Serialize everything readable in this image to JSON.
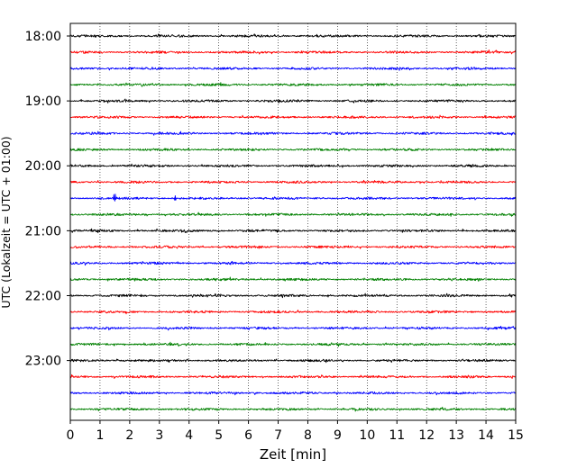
{
  "chart_data": {
    "type": "line",
    "title": "",
    "xlabel": "Zeit  [min]",
    "ylabel": "UTC (Lokalzeit = UTC + 01:00)",
    "xlim": [
      0,
      15
    ],
    "x_ticks": [
      0,
      1,
      2,
      3,
      4,
      5,
      6,
      7,
      8,
      9,
      10,
      11,
      12,
      13,
      14,
      15
    ],
    "y_tick_labels": [
      "18:00",
      "19:00",
      "20:00",
      "21:00",
      "22:00",
      "23:00"
    ],
    "row_start_time": "18:00",
    "row_interval_minutes": 15,
    "row_count": 24,
    "series_colors": [
      "#000000",
      "#ff0000",
      "#0000ff",
      "#008000"
    ],
    "grid": {
      "x_vertical_dotted": true
    },
    "legend": "none",
    "events": [
      {
        "row_time": "20:30",
        "start_min": 1.45,
        "end_min": 2.0,
        "amplitude": "large"
      },
      {
        "row_time": "20:30",
        "start_min": 3.5,
        "end_min": 4.1,
        "amplitude": "medium"
      }
    ]
  }
}
